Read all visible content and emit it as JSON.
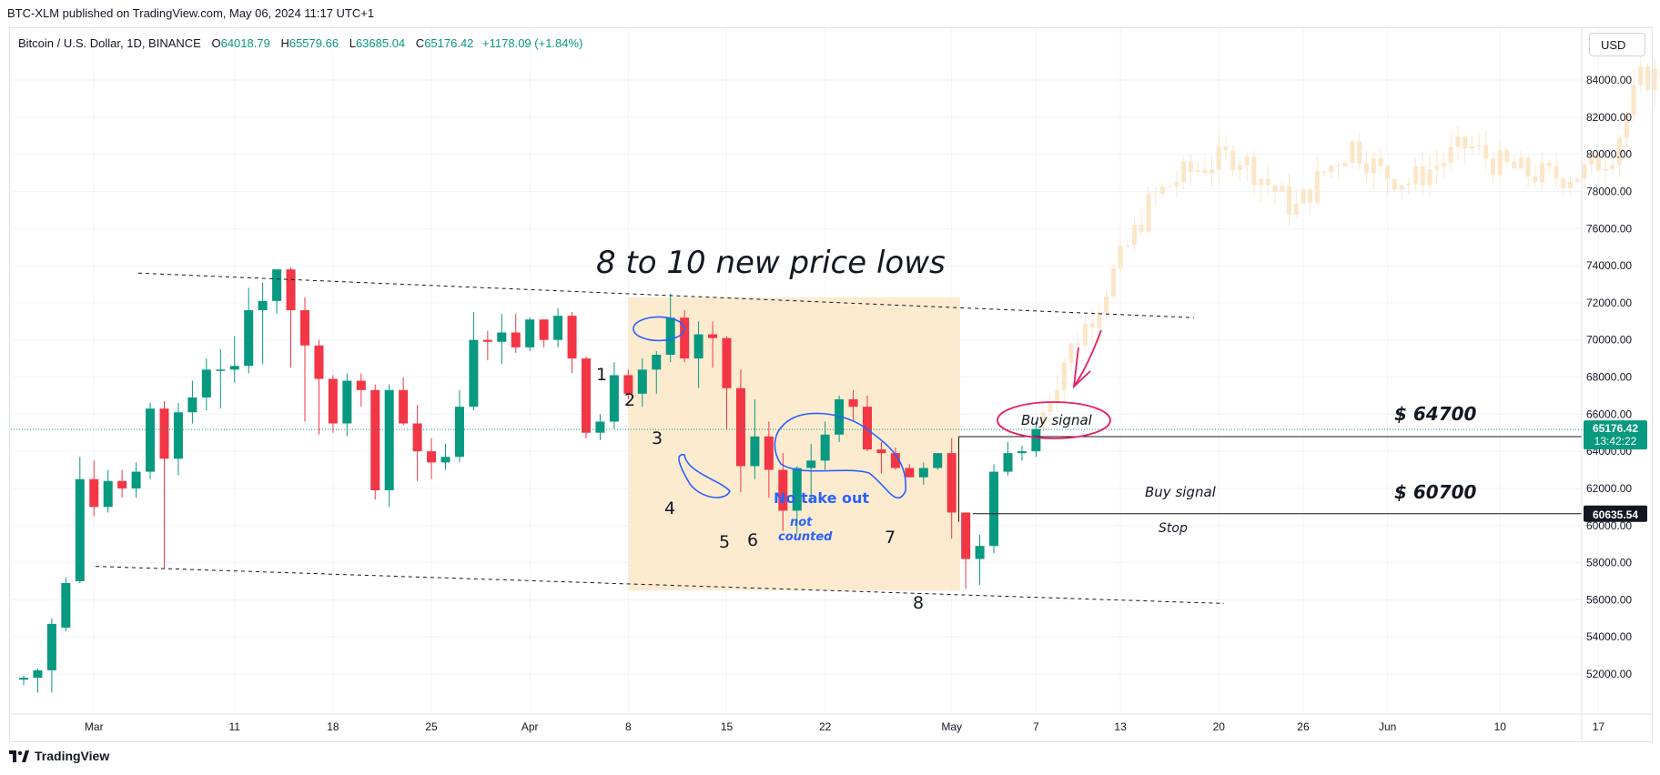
{
  "header": {
    "publisher": "BTC-XLM published on TradingView.com, May 06, 2024 11:17 UTC+1"
  },
  "legend": {
    "symbol": "Bitcoin / U.S. Dollar, 1D, BINANCE",
    "open_label": "O",
    "open": "64018.79",
    "high_label": "H",
    "high": "65579.66",
    "low_label": "L",
    "low": "63685.04",
    "close_label": "C",
    "close": "65176.42",
    "change": "+1178.09 (+1.84%)"
  },
  "currency": "USD",
  "footer": {
    "brand": "TradingView"
  },
  "colors": {
    "up": "#089981",
    "down": "#f23645",
    "ghost": "#fce6c8",
    "box": "#fde7c8",
    "blue_ink": "#2962ff",
    "pink_ink": "#e91e63"
  },
  "chart_data": {
    "type": "candlestick",
    "ylim": [
      50500,
      86000
    ],
    "yticks": [
      52000,
      54000,
      56000,
      58000,
      60000,
      62000,
      64000,
      66000,
      68000,
      70000,
      72000,
      74000,
      76000,
      78000,
      80000,
      82000,
      84000
    ],
    "ytick_labels": [
      "52000.00",
      "54000.00",
      "56000.00",
      "58000.00",
      "60000.00",
      "62000.00",
      "64000.00",
      "66000.00",
      "68000.00",
      "70000.00",
      "72000.00",
      "74000.00",
      "76000.00",
      "78000.00",
      "80000.00",
      "82000.00",
      "84000.00"
    ],
    "xaxis": {
      "labels": [
        "Mar",
        "11",
        "18",
        "25",
        "Apr",
        "8",
        "15",
        "22",
        "May",
        "7",
        "13",
        "20",
        "26",
        "Jun",
        "10",
        "17"
      ],
      "label_day_index": [
        0,
        10,
        17,
        24,
        31,
        38,
        45,
        52,
        61,
        67,
        73,
        80,
        86,
        92,
        100,
        107
      ]
    },
    "start_day_index": -5,
    "candles": [
      [
        51700,
        51900,
        51400,
        51800
      ],
      [
        51800,
        52300,
        51000,
        52200
      ],
      [
        52200,
        55000,
        51000,
        54700
      ],
      [
        54500,
        57200,
        54300,
        56900
      ],
      [
        57000,
        63700,
        56900,
        62500
      ],
      [
        62500,
        63500,
        60500,
        61000
      ],
      [
        61000,
        63000,
        60700,
        62400
      ],
      [
        62400,
        63000,
        61500,
        62000
      ],
      [
        62000,
        63400,
        61500,
        62900
      ],
      [
        62900,
        66600,
        62500,
        66300
      ],
      [
        66300,
        66700,
        57700,
        63600
      ],
      [
        63600,
        66600,
        62700,
        66100
      ],
      [
        66100,
        67800,
        65500,
        66900
      ],
      [
        66900,
        69000,
        66200,
        68400
      ],
      [
        68400,
        69500,
        66300,
        68400
      ],
      [
        68400,
        70200,
        67700,
        68600
      ],
      [
        68600,
        72800,
        68200,
        71600
      ],
      [
        71600,
        73100,
        68700,
        72100
      ],
      [
        72100,
        73600,
        71400,
        73800
      ],
      [
        73800,
        73900,
        68500,
        71600
      ],
      [
        71600,
        72300,
        65600,
        69700
      ],
      [
        69700,
        70000,
        64900,
        67900
      ],
      [
        67900,
        68100,
        65000,
        65500
      ],
      [
        65500,
        68200,
        64800,
        67800
      ],
      [
        67800,
        68200,
        66400,
        67300
      ],
      [
        67300,
        67600,
        61400,
        61900
      ],
      [
        61900,
        67600,
        61000,
        67300
      ],
      [
        67300,
        68000,
        65400,
        65500
      ],
      [
        65500,
        66500,
        62400,
        64000
      ],
      [
        64000,
        64700,
        62500,
        63400
      ],
      [
        63400,
        64400,
        63000,
        63700
      ],
      [
        63700,
        67300,
        63400,
        66400
      ],
      [
        66400,
        71500,
        66200,
        70000
      ],
      [
        70000,
        70500,
        68900,
        69900
      ],
      [
        69900,
        71400,
        68700,
        70400
      ],
      [
        70400,
        71400,
        69300,
        69600
      ],
      [
        69600,
        71200,
        69400,
        71100
      ],
      [
        71100,
        71100,
        69600,
        70000
      ],
      [
        70000,
        71700,
        69600,
        71300
      ],
      [
        71300,
        71500,
        68200,
        69000
      ],
      [
        69000,
        69100,
        64700,
        65000
      ],
      [
        65000,
        66000,
        64600,
        65600
      ],
      [
        65600,
        68800,
        65200,
        68100
      ],
      [
        68100,
        68400,
        66800,
        67100
      ],
      [
        67100,
        69000,
        66400,
        68400
      ],
      [
        68400,
        69400,
        67100,
        69200
      ],
      [
        69200,
        72500,
        68800,
        71200
      ],
      [
        71200,
        71600,
        68800,
        69000
      ],
      [
        69000,
        71000,
        67400,
        70300
      ],
      [
        70300,
        71000,
        68500,
        70100
      ],
      [
        70100,
        70200,
        65200,
        67400
      ],
      [
        67400,
        68400,
        61800,
        63200
      ],
      [
        63200,
        66800,
        62500,
        64800
      ],
      [
        64800,
        65600,
        61500,
        63000
      ],
      [
        63000,
        63900,
        59700,
        60800
      ],
      [
        60800,
        63200,
        59600,
        63100
      ],
      [
        63100,
        64400,
        61200,
        63500
      ],
      [
        63500,
        65600,
        63000,
        64900
      ],
      [
        64900,
        67000,
        64500,
        66800
      ],
      [
        66800,
        67300,
        65600,
        66400
      ],
      [
        66400,
        67000,
        64000,
        64100
      ],
      [
        64100,
        64500,
        62800,
        63900
      ],
      [
        63900,
        64200,
        63000,
        63100
      ],
      [
        63100,
        63300,
        62700,
        62600
      ],
      [
        62600,
        63400,
        62200,
        63100
      ],
      [
        63100,
        63900,
        63000,
        63900
      ],
      [
        63900,
        64700,
        59300,
        60700
      ],
      [
        60700,
        60700,
        56600,
        58200
      ],
      [
        58200,
        59500,
        56800,
        58900
      ],
      [
        58900,
        63300,
        58500,
        62900
      ],
      [
        62900,
        64500,
        62700,
        63900
      ],
      [
        63900,
        64300,
        63500,
        64000
      ],
      [
        64000,
        65600,
        63700,
        65200
      ]
    ],
    "future_days": 90,
    "price_lines": [
      {
        "value": 64787.35,
        "label": "64787.35"
      },
      {
        "value": 60635.54,
        "label": "60635.54"
      }
    ],
    "last_price": {
      "value": 65176.42,
      "label": "65176.42",
      "countdown": "13:42:22"
    }
  },
  "annotations": {
    "title": "8 to 10 new price lows",
    "counts": [
      "1",
      "2",
      "3",
      "4",
      "5",
      "6",
      "7",
      "8"
    ],
    "no_take_out": "No take out",
    "not_counted_1": "not",
    "not_counted_2": "counted",
    "buy_signal_1": "Buy signal",
    "buy_signal_2": "Buy signal",
    "stop": "Stop",
    "price_1": "$ 64700",
    "price_2": "$ 60700"
  }
}
